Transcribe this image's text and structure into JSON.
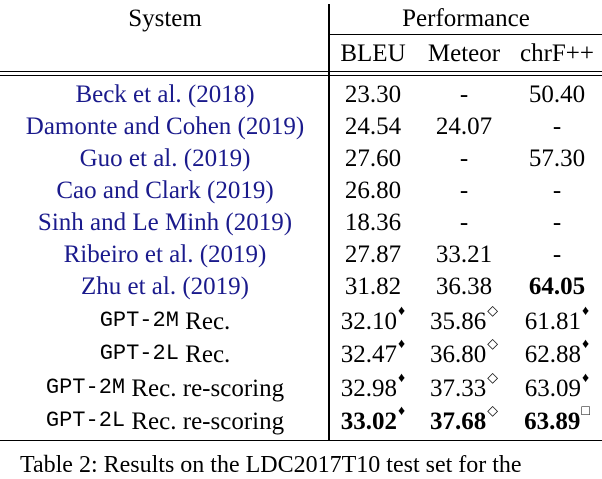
{
  "table": {
    "header": {
      "system": "System",
      "performance": "Performance",
      "bleu": "BLEU",
      "meteor": "Meteor",
      "chrf": "chrF++"
    },
    "rows": [
      {
        "system_name": "Beck et al. (",
        "year": "2018",
        "close": ")",
        "bleu": "23.30",
        "meteor": "-",
        "chrf": "50.40"
      },
      {
        "system_name": "Damonte and Cohen (",
        "year": "2019",
        "close": ")",
        "bleu": "24.54",
        "meteor": "24.07",
        "chrf": "-"
      },
      {
        "system_name": "Guo et al. (",
        "year": "2019",
        "close": ")",
        "bleu": "27.60",
        "meteor": "-",
        "chrf": "57.30"
      },
      {
        "system_name": "Cao and Clark (",
        "year": "2019",
        "close": ")",
        "bleu": "26.80",
        "meteor": "-",
        "chrf": "-"
      },
      {
        "system_name": "Sinh and Le Minh (",
        "year": "2019",
        "close": ")",
        "bleu": "18.36",
        "meteor": "-",
        "chrf": "-"
      },
      {
        "system_name": "Ribeiro et al. (",
        "year": "2019",
        "close": ")",
        "bleu": "27.87",
        "meteor": "33.21",
        "chrf": "-"
      },
      {
        "system_name": "Zhu et al. (",
        "year": "2019",
        "close": ")",
        "bleu": "31.82",
        "meteor": "36.38",
        "chrf": "64.05"
      },
      {
        "model": "GPT-2M",
        "suffix": "Rec.",
        "bleu": "32.10",
        "bleu_mark": "♦",
        "meteor": "35.86",
        "meteor_mark": "◇",
        "chrf": "61.81",
        "chrf_mark": "♦"
      },
      {
        "model": "GPT-2L",
        "suffix": "Rec.",
        "bleu": "32.47",
        "bleu_mark": "♦",
        "meteor": "36.80",
        "meteor_mark": "◇",
        "chrf": "62.88",
        "chrf_mark": "♦"
      },
      {
        "model": "GPT-2M",
        "suffix": "Rec. re-scoring",
        "bleu": "32.98",
        "bleu_mark": "♦",
        "meteor": "37.33",
        "meteor_mark": "◇",
        "chrf": "63.09",
        "chrf_mark": "♦"
      },
      {
        "model": "GPT-2L",
        "suffix": "Rec. re-scoring",
        "bleu": "33.02",
        "bleu_mark": "♦",
        "meteor": "37.68",
        "meteor_mark": "◇",
        "chrf": "63.89",
        "chrf_mark": "□"
      }
    ]
  },
  "caption": "Table 2: Results on the LDC2017T10 test set for the"
}
